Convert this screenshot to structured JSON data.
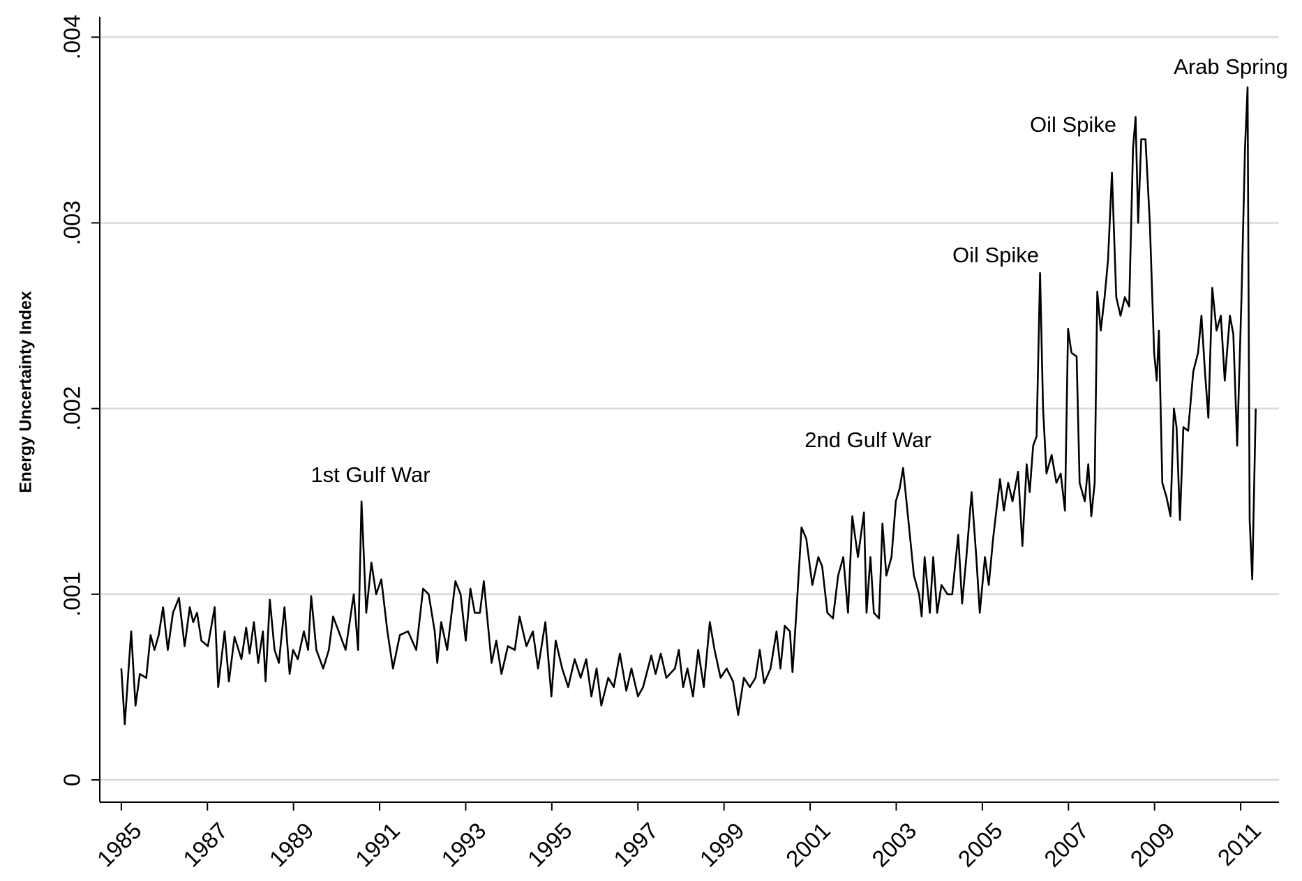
{
  "chart_data": {
    "type": "line",
    "y_label": "Energy Uncertainty Index",
    "annotations": [
      "1st Gulf War",
      "2nd Gulf War",
      "Oil Spike",
      "Oil Spike",
      "Arab Spring"
    ],
    "xlim": [
      1984.5,
      2011.89
    ],
    "xticks": [
      1985,
      1987,
      1989,
      1991,
      1993,
      1995,
      1997,
      1999,
      2001,
      2003,
      2005,
      2007,
      2009,
      2011
    ],
    "ylim": [
      -0.00012,
      0.00411
    ],
    "yticks": [
      0,
      {
        "value": 0.001,
        "label": ".001"
      },
      {
        "value": 0.002,
        "label": ".002"
      },
      {
        "value": 0.003,
        "label": ".003"
      },
      {
        "value": 0.004,
        "label": ".004"
      }
    ],
    "grid": true,
    "color": "#000000",
    "x": [
      1985.0,
      1985.08,
      1985.23,
      1985.33,
      1985.43,
      1985.58,
      1985.68,
      1985.77,
      1985.87,
      1985.97,
      1986.08,
      1986.2,
      1986.34,
      1986.47,
      1986.59,
      1986.67,
      1986.76,
      1986.86,
      1987.01,
      1987.17,
      1987.25,
      1987.4,
      1987.5,
      1987.63,
      1987.79,
      1987.9,
      1987.98,
      1988.08,
      1988.18,
      1988.29,
      1988.35,
      1988.45,
      1988.56,
      1988.66,
      1988.79,
      1988.91,
      1988.99,
      1989.1,
      1989.24,
      1989.34,
      1989.41,
      1989.53,
      1989.69,
      1989.82,
      1989.92,
      1990.21,
      1990.4,
      1990.5,
      1990.58,
      1990.69,
      1990.81,
      1990.92,
      1991.04,
      1991.18,
      1991.31,
      1991.47,
      1991.66,
      1991.85,
      1992.01,
      1992.14,
      1992.28,
      1992.34,
      1992.43,
      1992.57,
      1992.76,
      1992.88,
      1993.0,
      1993.11,
      1993.21,
      1993.33,
      1993.42,
      1993.6,
      1993.71,
      1993.83,
      1993.98,
      1994.14,
      1994.25,
      1994.41,
      1994.56,
      1994.68,
      1994.85,
      1994.99,
      1995.09,
      1995.24,
      1995.38,
      1995.53,
      1995.67,
      1995.8,
      1995.92,
      1996.04,
      1996.15,
      1996.31,
      1996.44,
      1996.58,
      1996.73,
      1996.85,
      1997.0,
      1997.12,
      1997.31,
      1997.41,
      1997.53,
      1997.66,
      1997.86,
      1997.95,
      1998.05,
      1998.15,
      1998.28,
      1998.4,
      1998.53,
      1998.67,
      1998.78,
      1998.92,
      1999.06,
      1999.21,
      1999.33,
      1999.46,
      1999.6,
      1999.73,
      1999.83,
      1999.93,
      2000.08,
      2000.22,
      2000.31,
      2000.41,
      2000.53,
      2000.59,
      2000.68,
      2000.8,
      2000.91,
      2001.05,
      2001.19,
      2001.28,
      2001.4,
      2001.53,
      2001.65,
      2001.77,
      2001.88,
      2001.98,
      2002.11,
      2002.25,
      2002.31,
      2002.4,
      2002.48,
      2002.6,
      2002.68,
      2002.77,
      2002.89,
      2002.99,
      2003.08,
      2003.16,
      2003.28,
      2003.41,
      2003.53,
      2003.59,
      2003.66,
      2003.78,
      2003.86,
      2003.95,
      2004.05,
      2004.19,
      2004.3,
      2004.44,
      2004.53,
      2004.63,
      2004.75,
      2004.86,
      2004.94,
      2005.06,
      2005.15,
      2005.25,
      2005.41,
      2005.5,
      2005.6,
      2005.7,
      2005.83,
      2005.93,
      2006.03,
      2006.1,
      2006.18,
      2006.26,
      2006.34,
      2006.41,
      2006.49,
      2006.61,
      2006.72,
      2006.82,
      2006.92,
      2006.99,
      2007.07,
      2007.19,
      2007.26,
      2007.38,
      2007.46,
      2007.53,
      2007.61,
      2007.67,
      2007.75,
      2007.84,
      2007.92,
      2008.01,
      2008.11,
      2008.21,
      2008.31,
      2008.41,
      2008.5,
      2008.56,
      2008.62,
      2008.69,
      2008.79,
      2008.89,
      2008.99,
      2009.05,
      2009.1,
      2009.18,
      2009.28,
      2009.37,
      2009.45,
      2009.51,
      2009.59,
      2009.67,
      2009.78,
      2009.9,
      2010.01,
      2010.09,
      2010.17,
      2010.25,
      2010.34,
      2010.44,
      2010.54,
      2010.63,
      2010.75,
      2010.83,
      2010.92,
      2011.02,
      2011.1,
      2011.16,
      2011.21,
      2011.27,
      2011.35
    ],
    "values": [
      0.0006,
      0.0003,
      0.0008,
      0.0004,
      0.00057,
      0.00055,
      0.00078,
      0.0007,
      0.00078,
      0.00093,
      0.0007,
      0.0009,
      0.00098,
      0.00072,
      0.00093,
      0.00085,
      0.0009,
      0.00075,
      0.00072,
      0.00093,
      0.0005,
      0.0008,
      0.00053,
      0.00077,
      0.00065,
      0.00082,
      0.00068,
      0.00085,
      0.00063,
      0.0008,
      0.00053,
      0.00097,
      0.0007,
      0.00063,
      0.00093,
      0.00057,
      0.0007,
      0.00065,
      0.0008,
      0.0007,
      0.00099,
      0.0007,
      0.0006,
      0.0007,
      0.00088,
      0.0007,
      0.001,
      0.0007,
      0.0015,
      0.0009,
      0.00117,
      0.001,
      0.00108,
      0.0008,
      0.0006,
      0.00078,
      0.0008,
      0.0007,
      0.00103,
      0.001,
      0.0008,
      0.00063,
      0.00085,
      0.0007,
      0.00107,
      0.001,
      0.00075,
      0.00103,
      0.0009,
      0.0009,
      0.00107,
      0.00063,
      0.00075,
      0.00057,
      0.00072,
      0.0007,
      0.00088,
      0.00072,
      0.0008,
      0.0006,
      0.00085,
      0.00045,
      0.00075,
      0.0006,
      0.0005,
      0.00065,
      0.00055,
      0.00065,
      0.00045,
      0.0006,
      0.0004,
      0.00055,
      0.0005,
      0.00068,
      0.00048,
      0.0006,
      0.00045,
      0.0005,
      0.00067,
      0.00057,
      0.00068,
      0.00055,
      0.0006,
      0.0007,
      0.0005,
      0.0006,
      0.00045,
      0.0007,
      0.0005,
      0.00085,
      0.0007,
      0.00055,
      0.0006,
      0.00053,
      0.00035,
      0.00055,
      0.0005,
      0.00055,
      0.0007,
      0.00052,
      0.0006,
      0.0008,
      0.0006,
      0.00083,
      0.0008,
      0.00058,
      0.0009,
      0.00136,
      0.0013,
      0.00105,
      0.0012,
      0.00115,
      0.0009,
      0.00087,
      0.0011,
      0.0012,
      0.0009,
      0.00142,
      0.0012,
      0.00144,
      0.0009,
      0.0012,
      0.0009,
      0.00087,
      0.00138,
      0.0011,
      0.0012,
      0.0015,
      0.00157,
      0.00168,
      0.0014,
      0.0011,
      0.001,
      0.00088,
      0.0012,
      0.0009,
      0.0012,
      0.0009,
      0.00105,
      0.001,
      0.001,
      0.00132,
      0.00095,
      0.0012,
      0.00155,
      0.0012,
      0.0009,
      0.0012,
      0.00105,
      0.0013,
      0.00162,
      0.00145,
      0.0016,
      0.0015,
      0.00166,
      0.00126,
      0.0017,
      0.00155,
      0.0018,
      0.00185,
      0.00273,
      0.002,
      0.00165,
      0.00175,
      0.0016,
      0.00165,
      0.00145,
      0.00243,
      0.0023,
      0.00228,
      0.0016,
      0.0015,
      0.0017,
      0.00142,
      0.0016,
      0.00263,
      0.00242,
      0.0026,
      0.0028,
      0.00327,
      0.0026,
      0.0025,
      0.0026,
      0.00255,
      0.0034,
      0.00357,
      0.003,
      0.00345,
      0.00345,
      0.003,
      0.0023,
      0.00215,
      0.00242,
      0.0016,
      0.00152,
      0.00142,
      0.002,
      0.0019,
      0.0014,
      0.0019,
      0.00188,
      0.0022,
      0.0023,
      0.0025,
      0.0022,
      0.00195,
      0.00265,
      0.00242,
      0.0025,
      0.00215,
      0.0025,
      0.0024,
      0.0018,
      0.0026,
      0.0034,
      0.00373,
      0.0014,
      0.00108,
      0.002
    ]
  }
}
